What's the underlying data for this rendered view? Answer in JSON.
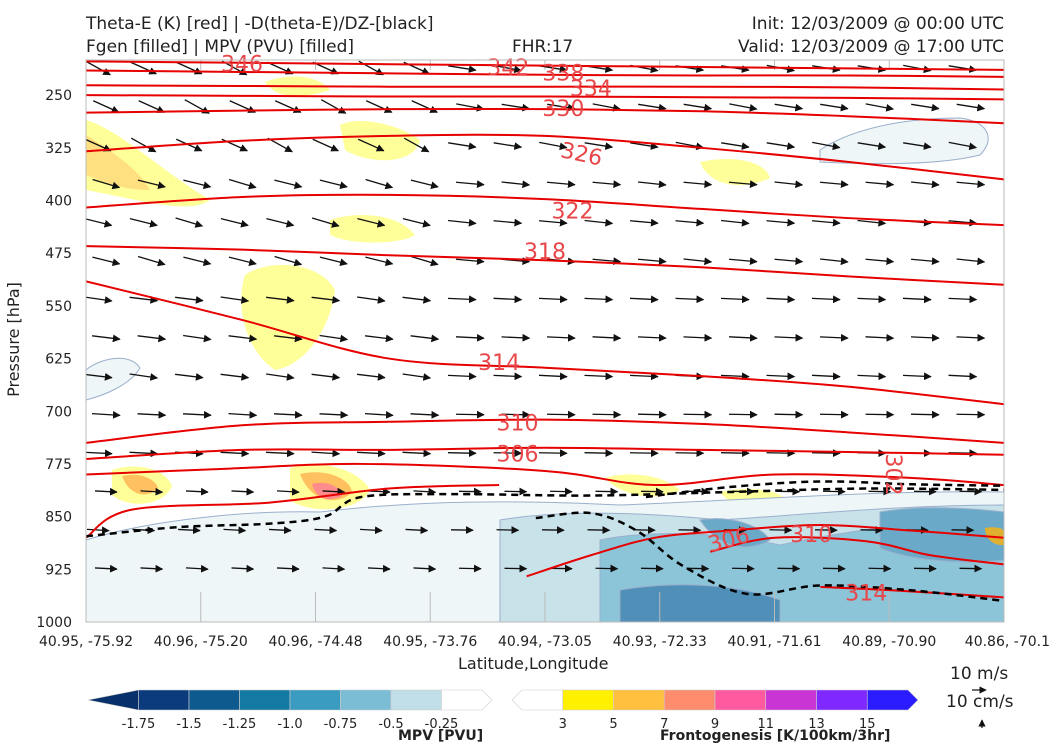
{
  "header": {
    "title_left_1": "Theta-E (K) [red] | -D(theta-E)/DZ-[black]",
    "title_left_2": "Fgen [filled] | MPV (PVU) [filled]",
    "fhr": "FHR:17",
    "init": "Init: 12/03/2009 @ 00:00 UTC",
    "valid": "Valid: 12/03/2009 @ 17:00 UTC"
  },
  "chart_data": {
    "type": "cross-section",
    "xlabel": "Latitude,Longitude",
    "ylabel": "Pressure [hPa]",
    "x_ticks": [
      "40.95, -75.92",
      "40.96, -75.20",
      "40.96, -74.48",
      "40.95, -73.76",
      "40.94, -73.05",
      "40.93, -72.33",
      "40.91, -71.61",
      "40.89, -70.90",
      "40.86, -70.1"
    ],
    "y_ticks": [
      250,
      325,
      400,
      475,
      550,
      625,
      700,
      775,
      850,
      925,
      1000
    ],
    "ylim": [
      1000,
      200
    ],
    "contours_theta_e": {
      "color": "#e60000",
      "levels": [
        {
          "value": "346",
          "p": [
            202,
            204,
            206,
            208,
            210,
            212,
            214
          ]
        },
        {
          "value": "342",
          "p": [
            215,
            217,
            219,
            221,
            222,
            222,
            224
          ]
        },
        {
          "value": "338",
          "p": [
            236,
            237,
            238,
            238,
            238,
            239,
            242
          ]
        },
        {
          "value": "334",
          "p": [
            250,
            251,
            252,
            252,
            253,
            254,
            256
          ]
        },
        {
          "value": "330",
          "p": [
            275,
            272,
            270,
            270,
            273,
            280,
            290
          ]
        },
        {
          "value": "326",
          "p": [
            330,
            315,
            308,
            308,
            325,
            345,
            370
          ]
        },
        {
          "value": "322",
          "p": [
            410,
            395,
            392,
            398,
            412,
            425,
            435
          ]
        },
        {
          "value": "318",
          "p": [
            465,
            470,
            478,
            485,
            495,
            508,
            520
          ]
        },
        {
          "value": "314",
          "p": [
            515,
            570,
            625,
            638,
            650,
            665,
            690
          ]
        },
        {
          "value": "310",
          "p": [
            745,
            720,
            715,
            712,
            718,
            730,
            745
          ]
        },
        {
          "value": "306",
          "p": [
            768,
            755,
            755,
            752,
            755,
            758,
            762
          ]
        }
      ]
    },
    "contour_labels": [
      {
        "text": "346",
        "x": 0.17,
        "p": 205
      },
      {
        "text": "342",
        "x": 0.46,
        "p": 210
      },
      {
        "text": "338",
        "x": 0.52,
        "p": 218
      },
      {
        "text": "334",
        "x": 0.55,
        "p": 240
      },
      {
        "text": "330",
        "x": 0.52,
        "p": 268
      },
      {
        "text": "326",
        "x": 0.54,
        "p": 333
      },
      {
        "text": "322",
        "x": 0.53,
        "p": 414
      },
      {
        "text": "318",
        "x": 0.5,
        "p": 472
      },
      {
        "text": "314",
        "x": 0.45,
        "p": 630
      },
      {
        "text": "310",
        "x": 0.47,
        "p": 716
      },
      {
        "text": "306",
        "x": 0.47,
        "p": 760
      },
      {
        "text": "302",
        "x": 0.88,
        "p": 790
      },
      {
        "text": "306",
        "x": 0.7,
        "p": 882
      },
      {
        "text": "310",
        "x": 0.79,
        "p": 875
      },
      {
        "text": "314",
        "x": 0.85,
        "p": 958
      }
    ],
    "colorbar_mpv": {
      "label": "MPV [PVU]",
      "ticks": [
        "-1.75",
        "-1.5",
        "-1.25",
        "-1.0",
        "-0.75",
        "-0.5",
        "-0.25"
      ],
      "colors": [
        "#08306b",
        "#0b3b7d",
        "#0e5a8f",
        "#1479a3",
        "#3a9cc0",
        "#7bbdd4",
        "#c1dfe8",
        "#ffffff"
      ]
    },
    "colorbar_fgen": {
      "label": "Frontogenesis [K/100km/3hr]",
      "ticks": [
        "3",
        "5",
        "7",
        "9",
        "11",
        "13",
        "15"
      ],
      "colors": [
        "#ffffff",
        "#fff000",
        "#ffc040",
        "#ff8c6c",
        "#ff5aa0",
        "#c835d4",
        "#7f28ff",
        "#2a1cff"
      ]
    },
    "reference_vectors": {
      "horizontal": "10 m/s",
      "vertical": "10 cm/s"
    }
  }
}
